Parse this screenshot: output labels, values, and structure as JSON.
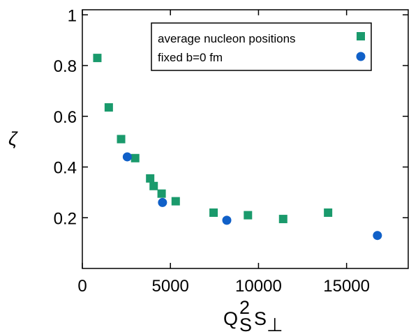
{
  "chart_data": {
    "type": "scatter",
    "xlabel": "Q_S^2 S_⊥",
    "xlabel_parts": {
      "base": "Q",
      "sup": "2",
      "sub": "S",
      "rest": "S",
      "rest_sub": "⊥"
    },
    "ylabel": "ζ",
    "xlim": [
      0,
      18500
    ],
    "ylim": [
      0,
      1.02
    ],
    "x_ticks": [
      0,
      5000,
      10000,
      15000
    ],
    "x_tick_labels": [
      "0",
      "5000",
      "10000",
      "15000"
    ],
    "y_ticks": [
      0.2,
      0.4,
      0.6,
      0.8,
      1.0
    ],
    "y_tick_labels": [
      "0.2",
      "0.4",
      "0.6",
      "0.8",
      "1"
    ],
    "grid": false,
    "legend_position": "top-right",
    "series": [
      {
        "name": "average nucleon positions",
        "marker": "square",
        "color": "#1a9a6c",
        "points": [
          {
            "x": 850,
            "y": 0.83
          },
          {
            "x": 1500,
            "y": 0.635
          },
          {
            "x": 2200,
            "y": 0.51
          },
          {
            "x": 3000,
            "y": 0.435
          },
          {
            "x": 3850,
            "y": 0.355
          },
          {
            "x": 4050,
            "y": 0.325
          },
          {
            "x": 4500,
            "y": 0.295
          },
          {
            "x": 5300,
            "y": 0.265
          },
          {
            "x": 7450,
            "y": 0.22
          },
          {
            "x": 9400,
            "y": 0.21
          },
          {
            "x": 11400,
            "y": 0.195
          },
          {
            "x": 13950,
            "y": 0.22
          }
        ]
      },
      {
        "name": "fixed b=0 fm",
        "marker": "circle",
        "color": "#1060c8",
        "points": [
          {
            "x": 2550,
            "y": 0.44
          },
          {
            "x": 4550,
            "y": 0.26
          },
          {
            "x": 8200,
            "y": 0.19
          },
          {
            "x": 16750,
            "y": 0.13
          }
        ]
      }
    ]
  }
}
